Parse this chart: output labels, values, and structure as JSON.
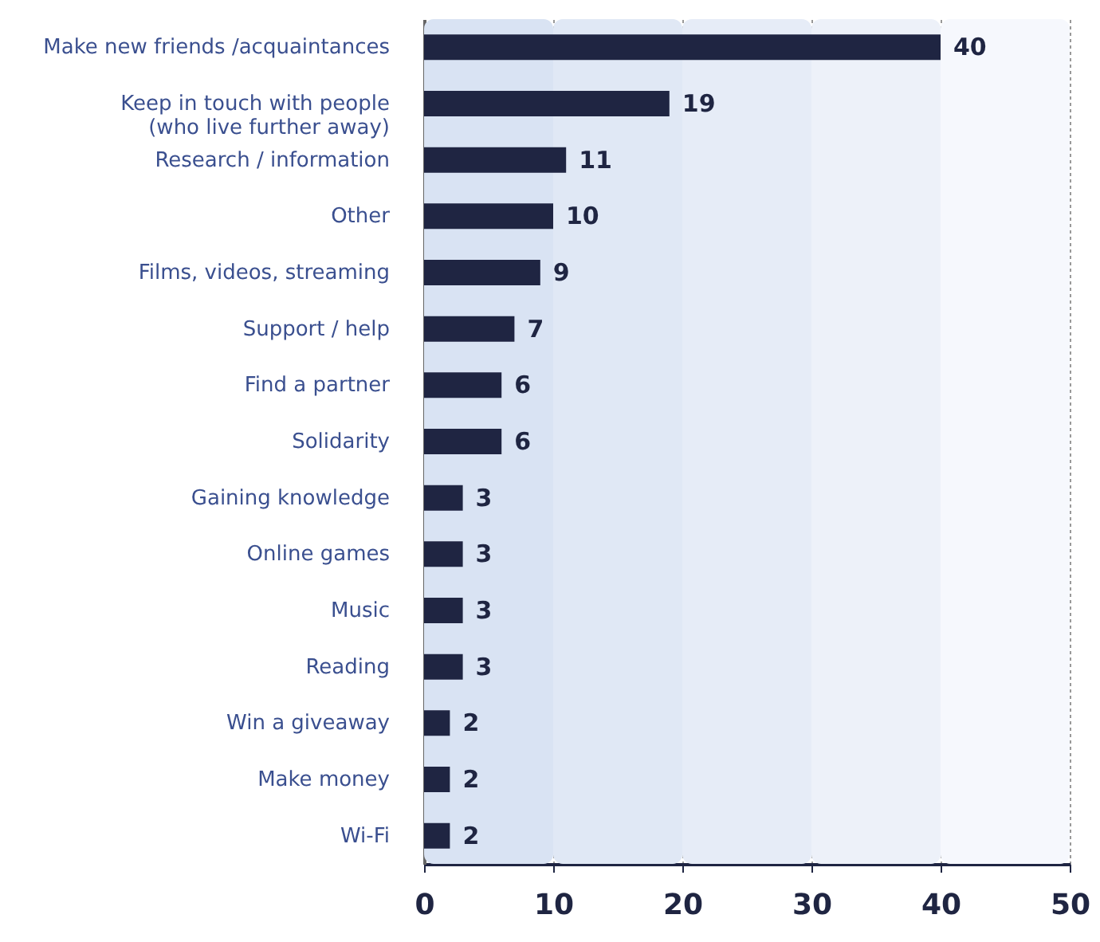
{
  "chart_data": {
    "type": "bar",
    "orientation": "horizontal",
    "categories": [
      "Make new friends /acquaintances",
      "Keep in touch with people\n(who live further away)",
      "Research / information",
      "Other",
      "Films, videos, streaming",
      "Support / help",
      "Find a partner",
      "Solidarity",
      "Gaining knowledge",
      "Online games",
      "Music",
      "Reading",
      "Win a giveaway",
      "Make money",
      "Wi-Fi"
    ],
    "values": [
      40,
      19,
      11,
      10,
      9,
      7,
      6,
      6,
      3,
      3,
      3,
      3,
      2,
      2,
      2
    ],
    "color": "#1f2542",
    "data_labels": true,
    "xlim": [
      0,
      50
    ],
    "xticks": [
      0,
      10,
      20,
      30,
      40,
      50
    ],
    "grid": "x",
    "bands": [
      {
        "axis": "x",
        "from": 0,
        "to": 10,
        "color": "#d9e3f3"
      },
      {
        "axis": "x",
        "from": 10,
        "to": 20,
        "color": "#e0e8f5"
      },
      {
        "axis": "x",
        "from": 20,
        "to": 30,
        "color": "#e6ecf7"
      },
      {
        "axis": "x",
        "from": 30,
        "to": 40,
        "color": "#edf1f9"
      },
      {
        "axis": "x",
        "from": 40,
        "to": 50,
        "color": "#f6f8fd"
      }
    ]
  }
}
